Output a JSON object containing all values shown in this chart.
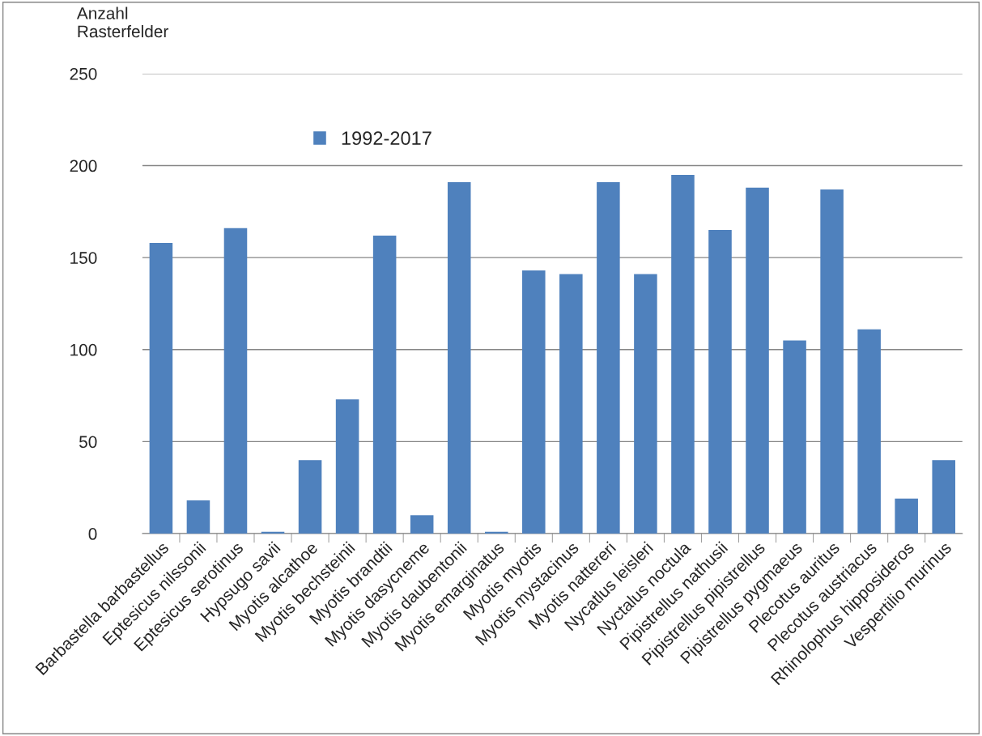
{
  "chart_data": {
    "type": "bar",
    "ylabel": "Anzahl\nRasterfelder",
    "categories": [
      "Barbastella barbastellus",
      "Eptesicus nilssonii",
      "Eptesicus serotinus",
      "Hypsugo savii",
      "Myotis alcathoe",
      "Myotis bechsteinii",
      "Myotis brandtii",
      "Myotis dasycneme",
      "Myotis daubentonii",
      "Myotis emarginatus",
      "Myotis myotis",
      "Myotis mystacinus",
      "Myotis nattereri",
      "Nycatlus leisleri",
      "Nyctalus noctula",
      "Pipistrellus nathusii",
      "Pipistrellus pipistrellus",
      "Pipistrellus pygmaeus",
      "Plecotus auritus",
      "Plecotus austriacus",
      "Rhinolophus hipposideros",
      "Vespertilio murinus"
    ],
    "series": [
      {
        "name": "1992-2017",
        "color": "#4f81bd",
        "values": [
          158,
          18,
          166,
          1,
          40,
          73,
          162,
          10,
          191,
          1,
          143,
          141,
          191,
          141,
          195,
          165,
          188,
          105,
          187,
          111,
          19,
          40
        ]
      }
    ],
    "ylim": [
      0,
      250
    ],
    "yticks": [
      0,
      50,
      100,
      150,
      200,
      250
    ],
    "grid": "y",
    "legend": "top left"
  }
}
